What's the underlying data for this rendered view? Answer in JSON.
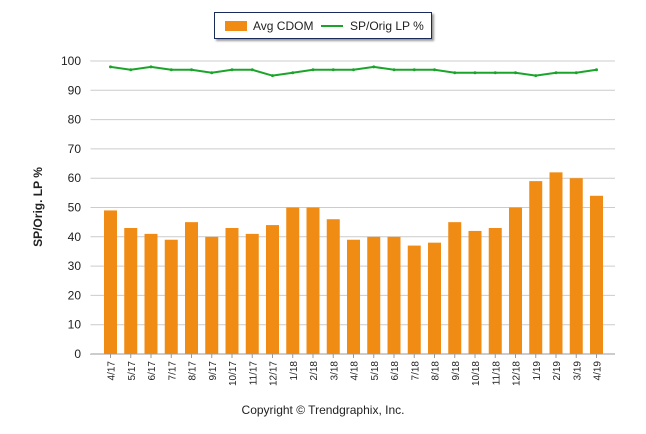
{
  "chart_data": {
    "type": "bar",
    "xlabel": "",
    "ylabel": "SP/Orig. LP %",
    "ylim": [
      0,
      100
    ],
    "yticks": [
      0,
      10,
      20,
      30,
      40,
      50,
      60,
      70,
      80,
      90,
      100
    ],
    "grid": true,
    "legend_placement": "top",
    "categories": [
      "4/17",
      "5/17",
      "6/17",
      "7/17",
      "8/17",
      "9/17",
      "10/17",
      "11/17",
      "12/17",
      "1/18",
      "2/18",
      "3/18",
      "4/18",
      "5/18",
      "6/18",
      "7/18",
      "8/18",
      "9/18",
      "10/18",
      "11/18",
      "12/18",
      "1/19",
      "2/19",
      "3/19",
      "4/19"
    ],
    "series": [
      {
        "name": "Avg CDOM",
        "type": "bar",
        "color": "#f08c14",
        "values": [
          49,
          43,
          41,
          39,
          45,
          40,
          43,
          41,
          44,
          50,
          50,
          46,
          39,
          40,
          40,
          37,
          38,
          45,
          42,
          43,
          50,
          59,
          62,
          60,
          54
        ]
      },
      {
        "name": "SP/Orig LP %",
        "type": "line",
        "color": "#1aa52a",
        "values": [
          98,
          97,
          98,
          97,
          97,
          96,
          97,
          97,
          95,
          96,
          97,
          97,
          97,
          98,
          97,
          97,
          97,
          96,
          96,
          96,
          96,
          95,
          96,
          96,
          97
        ]
      }
    ]
  },
  "copyright": "Copyright © Trendgraphix, Inc."
}
